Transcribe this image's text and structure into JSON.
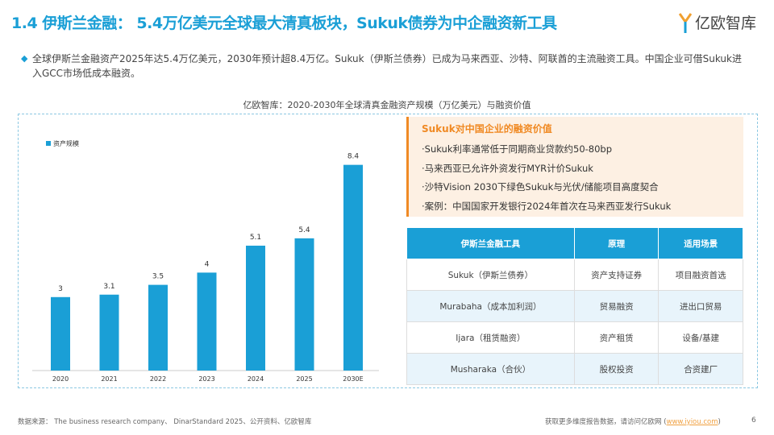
{
  "header": {
    "title": "1.4 伊斯兰金融： 5.4万亿美元全球最大清真板块，Sukuk债券为中企融资新工具",
    "logo": "亿欧智库"
  },
  "summary": "全球伊斯兰金融资产2025年达5.4万亿美元，2030年预计超8.4万亿。Sukuk（伊斯兰债券）已成为马来西亚、沙特、阿联酋的主流融资工具。中国企业可借Sukuk进入GCC市场低成本融资。",
  "chart_title": "亿欧智库：2020-2030年全球清真金融资产规模（万亿美元）与融资价值",
  "colors": {
    "accent": "#1a9fd6",
    "orange": "#f08a24"
  },
  "chart_data": {
    "type": "bar",
    "categories": [
      "2020",
      "2021",
      "2022",
      "2023",
      "2024",
      "2025",
      "2030E"
    ],
    "series": [
      {
        "name": "资产规模",
        "values": [
          3,
          3.1,
          3.5,
          4,
          5.1,
          5.4,
          8.4
        ]
      }
    ],
    "legend": "top-left",
    "grid": false,
    "ylim": [
      0,
      9
    ]
  },
  "value_box": {
    "heading": "Sukuk对中国企业的融资价值",
    "items": [
      "·Sukuk利率通常低于同期商业贷款约50-80bp",
      "·马来西亚已允许外资发行MYR计价Sukuk",
      "·沙特Vision 2030下绿色Sukuk与光伏/储能项目高度契合",
      "·案例：中国国家开发银行2024年首次在马来西亚发行Sukuk"
    ]
  },
  "table": {
    "headers": [
      "伊斯兰金融工具",
      "原理",
      "适用场景"
    ],
    "rows": [
      [
        "Sukuk（伊斯兰债券）",
        "资产支持证券",
        "项目融资首选"
      ],
      [
        "Murabaha（成本加利润）",
        "贸易融资",
        "进出口贸易"
      ],
      [
        "Ijara（租赁融资）",
        "资产租赁",
        "设备/基建"
      ],
      [
        "Musharaka（合伙）",
        "股权投资",
        "合资建厂"
      ]
    ]
  },
  "footer": {
    "source": "数据来源： The business research company、 DinarStandard 2025、公开资料、亿欧智库",
    "cta": "获取更多维度报告数据，请访问亿欧网 (",
    "link": "www.iyiou.com",
    "cta_end": ")",
    "page": "6"
  }
}
